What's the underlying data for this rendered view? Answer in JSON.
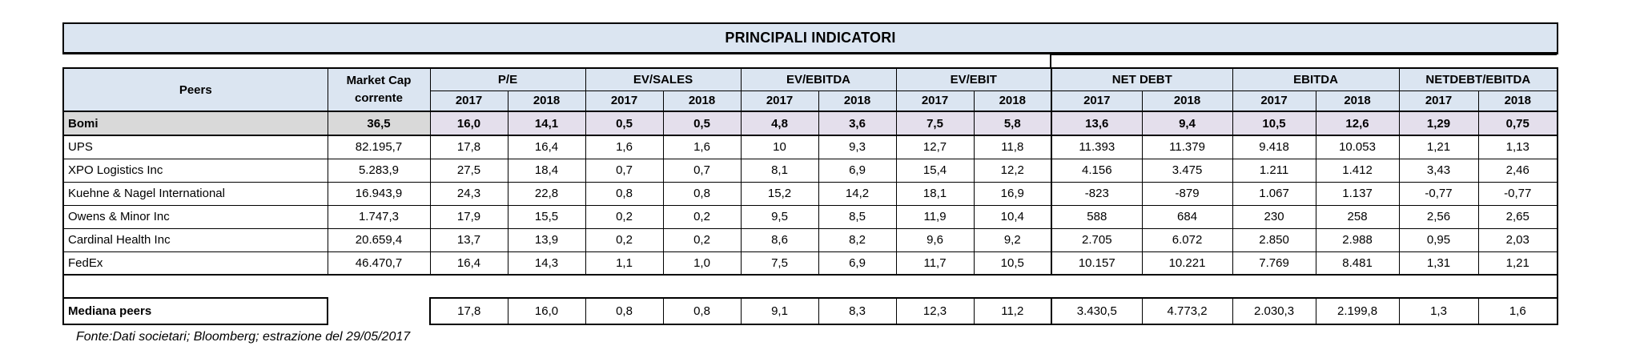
{
  "title": "PRINCIPALI INDICATORI",
  "footer": "Fonte:Dati societari; Bloomberg; estrazione del 29/05/2017",
  "colors": {
    "panel_blue": "#dbe5f1",
    "bomi_gray": "#d9d9d9",
    "bomi_lavender": "#e4dfec",
    "border": "#000000"
  },
  "table": {
    "peers_header": "Peers",
    "market_cap_header_line1": "Market Cap",
    "market_cap_header_line2": "corrente",
    "sections": [
      {
        "label": "P/E",
        "years": [
          "2017",
          "2018"
        ]
      },
      {
        "label": "EV/SALES",
        "years": [
          "2017",
          "2018"
        ]
      },
      {
        "label": "EV/EBITDA",
        "years": [
          "2017",
          "2018"
        ]
      },
      {
        "label": "EV/EBIT",
        "years": [
          "2017",
          "2018"
        ]
      },
      {
        "label": "NET DEBT",
        "years": [
          "2017",
          "2018"
        ]
      },
      {
        "label": "EBITDA",
        "years": [
          "2017",
          "2018"
        ]
      },
      {
        "label": "NETDEBT/EBITDA",
        "years": [
          "2017",
          "2018"
        ]
      }
    ],
    "rows": [
      {
        "name": "Bomi",
        "highlight": true,
        "market_cap": "36,5",
        "values": [
          "16,0",
          "14,1",
          "0,5",
          "0,5",
          "4,8",
          "3,6",
          "7,5",
          "5,8",
          "13,6",
          "9,4",
          "10,5",
          "12,6",
          "1,29",
          "0,75"
        ]
      },
      {
        "name": "UPS",
        "highlight": false,
        "market_cap": "82.195,7",
        "values": [
          "17,8",
          "16,4",
          "1,6",
          "1,6",
          "10",
          "9,3",
          "12,7",
          "11,8",
          "11.393",
          "11.379",
          "9.418",
          "10.053",
          "1,21",
          "1,13"
        ]
      },
      {
        "name": "XPO Logistics Inc",
        "highlight": false,
        "market_cap": "5.283,9",
        "values": [
          "27,5",
          "18,4",
          "0,7",
          "0,7",
          "8,1",
          "6,9",
          "15,4",
          "12,2",
          "4.156",
          "3.475",
          "1.211",
          "1.412",
          "3,43",
          "2,46"
        ]
      },
      {
        "name": "Kuehne & Nagel International",
        "highlight": false,
        "market_cap": "16.943,9",
        "values": [
          "24,3",
          "22,8",
          "0,8",
          "0,8",
          "15,2",
          "14,2",
          "18,1",
          "16,9",
          "-823",
          "-879",
          "1.067",
          "1.137",
          "-0,77",
          "-0,77"
        ]
      },
      {
        "name": "Owens & Minor Inc",
        "highlight": false,
        "market_cap": "1.747,3",
        "values": [
          "17,9",
          "15,5",
          "0,2",
          "0,2",
          "9,5",
          "8,5",
          "11,9",
          "10,4",
          "588",
          "684",
          "230",
          "258",
          "2,56",
          "2,65"
        ]
      },
      {
        "name": "Cardinal Health Inc",
        "highlight": false,
        "market_cap": "20.659,4",
        "values": [
          "13,7",
          "13,9",
          "0,2",
          "0,2",
          "8,6",
          "8,2",
          "9,6",
          "9,2",
          "2.705",
          "6.072",
          "2.850",
          "2.988",
          "0,95",
          "2,03"
        ]
      },
      {
        "name": "FedEx",
        "highlight": false,
        "market_cap": "46.470,7",
        "values": [
          "16,4",
          "14,3",
          "1,1",
          "1,0",
          "7,5",
          "6,9",
          "11,7",
          "10,5",
          "10.157",
          "10.221",
          "7.769",
          "8.481",
          "1,31",
          "1,21"
        ]
      }
    ],
    "median_row": {
      "name": "Mediana peers",
      "values": [
        "17,8",
        "16,0",
        "0,8",
        "0,8",
        "9,1",
        "8,3",
        "12,3",
        "11,2",
        "3.430,5",
        "4.773,2",
        "2.030,3",
        "2.199,8",
        "1,3",
        "1,6"
      ]
    }
  }
}
